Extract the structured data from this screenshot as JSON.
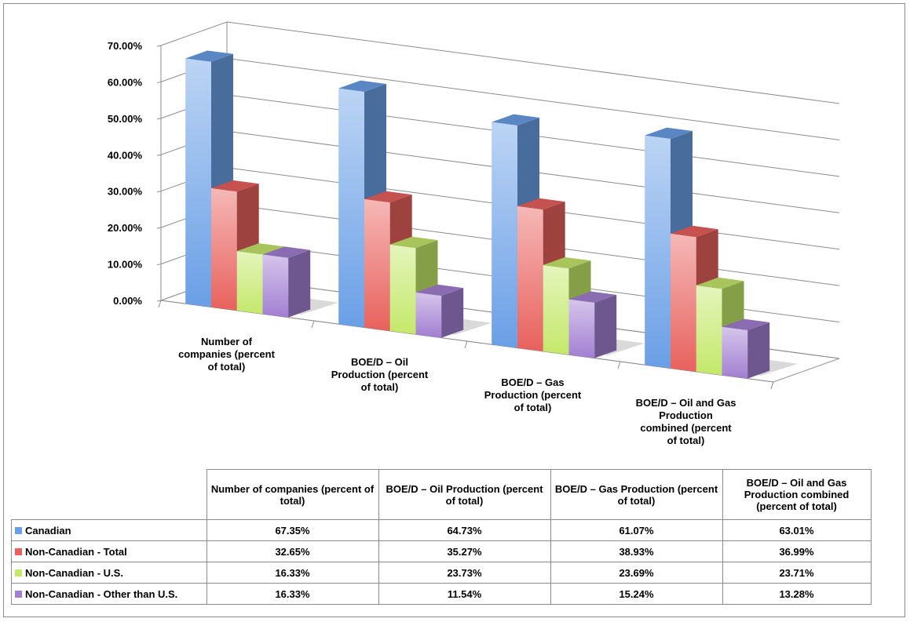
{
  "chart_data": {
    "type": "bar",
    "categories": [
      "Number of companies (percent of total)",
      "BOE/D – Oil Production (percent of total)",
      "BOE/D – Gas Production (percent of total)",
      "BOE/D – Oil and Gas Production combined (percent of total)"
    ],
    "category_label_lines": [
      [
        "Number of",
        "companies (percent",
        "of total)"
      ],
      [
        "BOE/D – Oil",
        "Production (percent",
        "of total)"
      ],
      [
        "BOE/D – Gas",
        "Production (percent",
        "of total)"
      ],
      [
        "BOE/D – Oil and Gas",
        "Production",
        "combined (percent",
        "of total)"
      ]
    ],
    "series": [
      {
        "name": "Canadian",
        "values": [
          67.35,
          64.73,
          61.07,
          63.01
        ],
        "color": "#6a9fe6"
      },
      {
        "name": "Non-Canadian - Total",
        "values": [
          32.65,
          35.27,
          38.93,
          36.99
        ],
        "color": "#e8615d"
      },
      {
        "name": "Non-Canadian - U.S.",
        "values": [
          16.33,
          23.73,
          23.69,
          23.71
        ],
        "color": "#c4e86a"
      },
      {
        "name": "Non-Canadian - Other than U.S.",
        "values": [
          16.33,
          11.54,
          15.24,
          13.28
        ],
        "color": "#a27fd2"
      }
    ],
    "value_labels": [
      [
        "67.35%",
        "64.73%",
        "61.07%",
        "63.01%"
      ],
      [
        "32.65%",
        "35.27%",
        "38.93%",
        "36.99%"
      ],
      [
        "16.33%",
        "23.73%",
        "23.69%",
        "23.71%"
      ],
      [
        "16.33%",
        "11.54%",
        "15.24%",
        "13.28%"
      ]
    ],
    "ylim": [
      0,
      70
    ],
    "yticks": [
      "0.00%",
      "10.00%",
      "20.00%",
      "30.00%",
      "40.00%",
      "50.00%",
      "60.00%",
      "70.00%"
    ],
    "grid": true,
    "style": "3d-clustered-column",
    "legend": "data-table",
    "title": "",
    "xlabel": "",
    "ylabel": ""
  },
  "table": {
    "headers": [
      "Number of companies (percent of total)",
      "BOE/D – Oil Production (percent of total)",
      "BOE/D – Gas Production (percent of total)",
      "BOE/D – Oil and Gas Production combined (percent of total)"
    ]
  }
}
